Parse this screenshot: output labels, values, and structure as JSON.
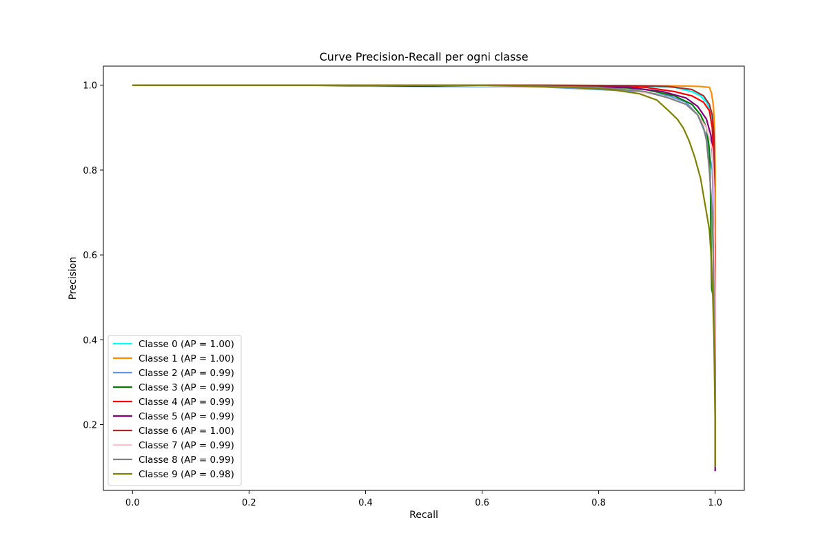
{
  "chart_data": {
    "type": "line",
    "title": "Curve Precision-Recall per ogni classe",
    "xlabel": "Recall",
    "ylabel": "Precision",
    "xlim": [
      -0.05,
      1.05
    ],
    "ylim": [
      0.045,
      1.045
    ],
    "x_ticks": [
      "0.0",
      "0.2",
      "0.4",
      "0.6",
      "0.8",
      "1.0"
    ],
    "y_ticks": [
      "0.2",
      "0.4",
      "0.6",
      "0.8",
      "1.0"
    ],
    "grid": false,
    "legend_position": "lower-left",
    "series": [
      {
        "name": "Classe 0 (AP = 1.00)",
        "color": "#00ffff",
        "points": [
          [
            0,
            1
          ],
          [
            0.6,
            1
          ],
          [
            0.85,
            0.999
          ],
          [
            0.93,
            0.995
          ],
          [
            0.96,
            0.985
          ],
          [
            0.975,
            0.975
          ],
          [
            0.985,
            0.96
          ],
          [
            0.993,
            0.935
          ],
          [
            0.996,
            0.9
          ],
          [
            0.998,
            0.85
          ],
          [
            0.999,
            0.75
          ],
          [
            1.0,
            0.5
          ],
          [
            1.0,
            0.12
          ]
        ]
      },
      {
        "name": "Classe 1 (AP = 1.00)",
        "color": "#ff8c00",
        "points": [
          [
            0,
            1
          ],
          [
            0.7,
            1
          ],
          [
            0.9,
            0.999
          ],
          [
            0.95,
            0.998
          ],
          [
            0.975,
            0.997
          ],
          [
            0.99,
            0.995
          ],
          [
            0.994,
            0.98
          ],
          [
            0.997,
            0.95
          ],
          [
            0.999,
            0.9
          ],
          [
            1.0,
            0.8
          ],
          [
            1.0,
            0.12
          ]
        ]
      },
      {
        "name": "Classe 2 (AP = 0.99)",
        "color": "#6495ed",
        "points": [
          [
            0,
            1
          ],
          [
            0.3,
            1
          ],
          [
            0.37,
            0.998
          ],
          [
            0.55,
            0.997
          ],
          [
            0.7,
            0.996
          ],
          [
            0.8,
            0.99
          ],
          [
            0.87,
            0.985
          ],
          [
            0.92,
            0.975
          ],
          [
            0.95,
            0.96
          ],
          [
            0.97,
            0.93
          ],
          [
            0.985,
            0.88
          ],
          [
            0.995,
            0.8
          ],
          [
            0.999,
            0.65
          ],
          [
            1.0,
            0.4
          ],
          [
            1.0,
            0.12
          ]
        ]
      },
      {
        "name": "Classe 3 (AP = 0.99)",
        "color": "#008000",
        "points": [
          [
            0,
            1
          ],
          [
            0.6,
            1
          ],
          [
            0.8,
            0.997
          ],
          [
            0.88,
            0.99
          ],
          [
            0.93,
            0.975
          ],
          [
            0.96,
            0.955
          ],
          [
            0.975,
            0.93
          ],
          [
            0.985,
            0.9
          ],
          [
            0.99,
            0.85
          ],
          [
            0.992,
            0.75
          ],
          [
            0.993,
            0.6
          ],
          [
            0.994,
            0.52
          ],
          [
            0.997,
            0.5
          ],
          [
            1.0,
            0.3
          ],
          [
            1.0,
            0.12
          ]
        ]
      },
      {
        "name": "Classe 4 (AP = 0.99)",
        "color": "#ff0000",
        "points": [
          [
            0,
            1
          ],
          [
            0.6,
            1
          ],
          [
            0.8,
            0.998
          ],
          [
            0.88,
            0.995
          ],
          [
            0.93,
            0.985
          ],
          [
            0.96,
            0.975
          ],
          [
            0.98,
            0.96
          ],
          [
            0.99,
            0.94
          ],
          [
            0.995,
            0.9
          ],
          [
            0.998,
            0.8
          ],
          [
            0.999,
            0.7
          ],
          [
            1.0,
            0.6
          ],
          [
            1.0,
            0.12
          ]
        ]
      },
      {
        "name": "Classe 5 (AP = 0.99)",
        "color": "#800080",
        "points": [
          [
            0,
            1
          ],
          [
            0.4,
            1
          ],
          [
            0.48,
            0.998
          ],
          [
            0.75,
            0.998
          ],
          [
            0.85,
            0.995
          ],
          [
            0.91,
            0.985
          ],
          [
            0.95,
            0.97
          ],
          [
            0.97,
            0.95
          ],
          [
            0.985,
            0.92
          ],
          [
            0.993,
            0.88
          ],
          [
            0.997,
            0.8
          ],
          [
            0.999,
            0.6
          ],
          [
            1.0,
            0.3
          ],
          [
            1.0,
            0.09
          ]
        ]
      },
      {
        "name": "Classe 6 (AP = 1.00)",
        "color": "#a52a2a",
        "points": [
          [
            0,
            1
          ],
          [
            0.7,
            1
          ],
          [
            0.85,
            0.999
          ],
          [
            0.92,
            0.997
          ],
          [
            0.96,
            0.99
          ],
          [
            0.98,
            0.975
          ],
          [
            0.99,
            0.955
          ],
          [
            0.995,
            0.93
          ],
          [
            0.998,
            0.88
          ],
          [
            0.999,
            0.75
          ],
          [
            1.0,
            0.5
          ],
          [
            1.0,
            0.12
          ]
        ]
      },
      {
        "name": "Classe 7 (AP = 0.99)",
        "color": "#ffc0cb",
        "points": [
          [
            0,
            1
          ],
          [
            0.5,
            1
          ],
          [
            0.75,
            0.995
          ],
          [
            0.85,
            0.99
          ],
          [
            0.91,
            0.975
          ],
          [
            0.95,
            0.955
          ],
          [
            0.97,
            0.93
          ],
          [
            0.985,
            0.9
          ],
          [
            0.995,
            0.85
          ],
          [
            0.998,
            0.75
          ],
          [
            1.0,
            0.5
          ],
          [
            1.0,
            0.12
          ]
        ]
      },
      {
        "name": "Classe 8 (AP = 0.99)",
        "color": "#808080",
        "points": [
          [
            0,
            1
          ],
          [
            0.6,
            1
          ],
          [
            0.8,
            0.995
          ],
          [
            0.88,
            0.985
          ],
          [
            0.92,
            0.97
          ],
          [
            0.95,
            0.955
          ],
          [
            0.97,
            0.93
          ],
          [
            0.98,
            0.9
          ],
          [
            0.985,
            0.87
          ],
          [
            0.99,
            0.8
          ],
          [
            0.995,
            0.7
          ],
          [
            0.998,
            0.5
          ],
          [
            1.0,
            0.3
          ],
          [
            1.0,
            0.1
          ]
        ]
      },
      {
        "name": "Classe 9 (AP = 0.98)",
        "color": "#808000",
        "points": [
          [
            0,
            1
          ],
          [
            0.6,
            1
          ],
          [
            0.75,
            0.995
          ],
          [
            0.82,
            0.99
          ],
          [
            0.87,
            0.98
          ],
          [
            0.9,
            0.965
          ],
          [
            0.92,
            0.94
          ],
          [
            0.935,
            0.92
          ],
          [
            0.945,
            0.9
          ],
          [
            0.955,
            0.87
          ],
          [
            0.965,
            0.83
          ],
          [
            0.975,
            0.78
          ],
          [
            0.98,
            0.74
          ],
          [
            0.985,
            0.7
          ],
          [
            0.99,
            0.66
          ],
          [
            0.993,
            0.6
          ],
          [
            0.996,
            0.5
          ],
          [
            0.998,
            0.4
          ],
          [
            1.0,
            0.2
          ],
          [
            1.0,
            0.1
          ]
        ]
      }
    ]
  }
}
